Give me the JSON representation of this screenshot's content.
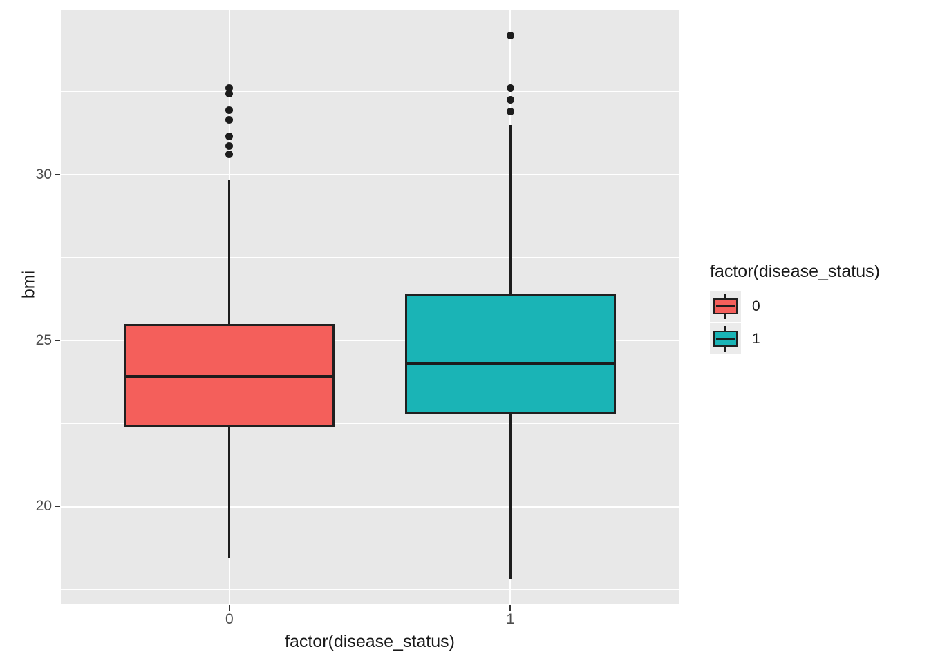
{
  "chart_data": {
    "type": "boxplot",
    "title": "",
    "xlabel": "factor(disease_status)",
    "ylabel": "bmi",
    "categories": [
      "0",
      "1"
    ],
    "y_axis": {
      "ticks": [
        20,
        25,
        30
      ],
      "tick_labels": [
        "20",
        "25",
        "30"
      ],
      "minor_ticks": [
        17.5,
        22.5,
        27.5,
        32.5
      ],
      "range": [
        17.05,
        34.95
      ]
    },
    "grid": "on",
    "series": [
      {
        "group": "0",
        "fill": "#F45F5B",
        "whisker_low": 18.45,
        "q1": 22.4,
        "median": 23.9,
        "q3": 25.5,
        "whisker_high": 29.85,
        "outliers": [
          30.6,
          30.85,
          31.15,
          31.65,
          31.95,
          32.45,
          32.6
        ]
      },
      {
        "group": "1",
        "fill": "#1AB4B6",
        "whisker_low": 17.8,
        "q1": 22.8,
        "median": 24.3,
        "q3": 26.4,
        "whisker_high": 31.5,
        "outliers": [
          31.9,
          32.25,
          32.6,
          34.2
        ]
      }
    ],
    "legend": {
      "title": "factor(disease_status)",
      "position": "right",
      "entries": [
        {
          "label": "0",
          "color": "#F45F5B"
        },
        {
          "label": "1",
          "color": "#1AB4B6"
        }
      ]
    },
    "colors": {
      "panel_bg": "#E8E8E8",
      "grid": "#FFFFFF",
      "tick_label": "#4D4D4D",
      "line": "#1C1C1C",
      "box_border": "#202020"
    }
  }
}
